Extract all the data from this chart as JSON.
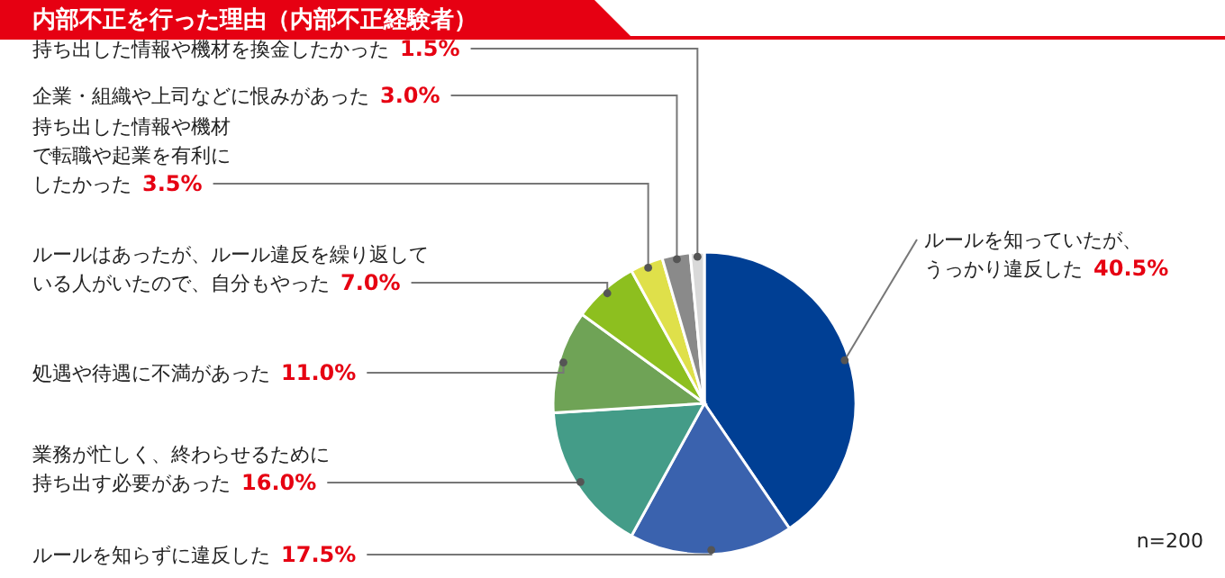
{
  "chart_data": {
    "type": "pie",
    "title": "内部不正を行った理由（内部不正経験者）",
    "categories": [
      "ルールを知っていたが、うっかり違反した",
      "ルールを知らずに違反した",
      "業務が忙しく、終わらせるために持ち出す必要があった",
      "処遇や待遇に不満があった",
      "ルールはあったが、ルール違反を繰り返している人がいたので、自分もやった",
      "持ち出した情報や機材で転職や起業を有利にしたかった",
      "企業・組織や上司などに恨みがあった",
      "持ち出した情報や機材を換金したかった"
    ],
    "values": [
      40.5,
      17.5,
      16.0,
      11.0,
      7.0,
      3.5,
      3.0,
      1.5
    ],
    "value_labels": [
      "40.5%",
      "17.5%",
      "16.0%",
      "11.0%",
      "7.0%",
      "3.5%",
      "3.0%",
      "1.5%"
    ],
    "colors": [
      "#003f94",
      "#3a62ae",
      "#449c88",
      "#6fa356",
      "#8dbf1f",
      "#dfe04a",
      "#8a8a8a",
      "#d9d9d9"
    ],
    "annotations": [
      "n=200"
    ]
  }
}
